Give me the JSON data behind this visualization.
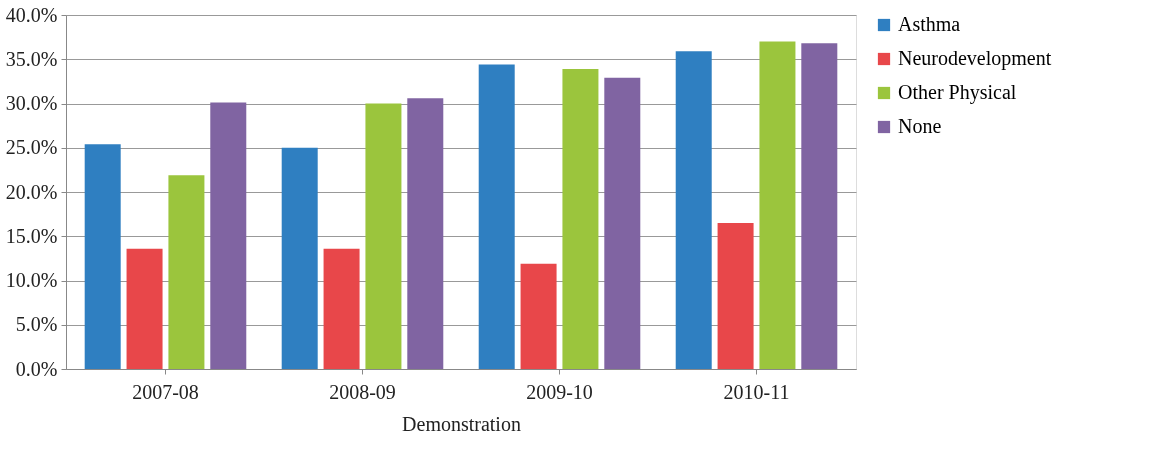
{
  "chart_data": {
    "type": "bar",
    "xlabel": "Demonstration",
    "categories": [
      "2007-08",
      "2008-09",
      "2009-10",
      "2010-11"
    ],
    "series": [
      {
        "name": "Asthma",
        "color": "#2f7fc1",
        "values": [
          25.4,
          25.0,
          34.4,
          35.9
        ]
      },
      {
        "name": "Neurodevelopment",
        "color": "#e8474a",
        "values": [
          13.6,
          13.6,
          11.9,
          16.5
        ]
      },
      {
        "name": "Other Physical",
        "color": "#9bc53d",
        "values": [
          21.9,
          30.0,
          33.9,
          37.0
        ]
      },
      {
        "name": "None",
        "color": "#8064a2",
        "values": [
          30.1,
          30.6,
          32.9,
          36.8
        ]
      }
    ],
    "ylim": [
      0,
      40
    ],
    "yticks": [
      {
        "value": 0,
        "label": "0.0%"
      },
      {
        "value": 5,
        "label": "5.0%"
      },
      {
        "value": 10,
        "label": "10.0%"
      },
      {
        "value": 15,
        "label": "15.0%"
      },
      {
        "value": 20,
        "label": "20.0%"
      },
      {
        "value": 25,
        "label": "25.0%"
      },
      {
        "value": 30,
        "label": "30.0%"
      },
      {
        "value": 35,
        "label": "35.0%"
      },
      {
        "value": 40,
        "label": "40.0%"
      }
    ],
    "grid": "y",
    "legend": "right"
  }
}
